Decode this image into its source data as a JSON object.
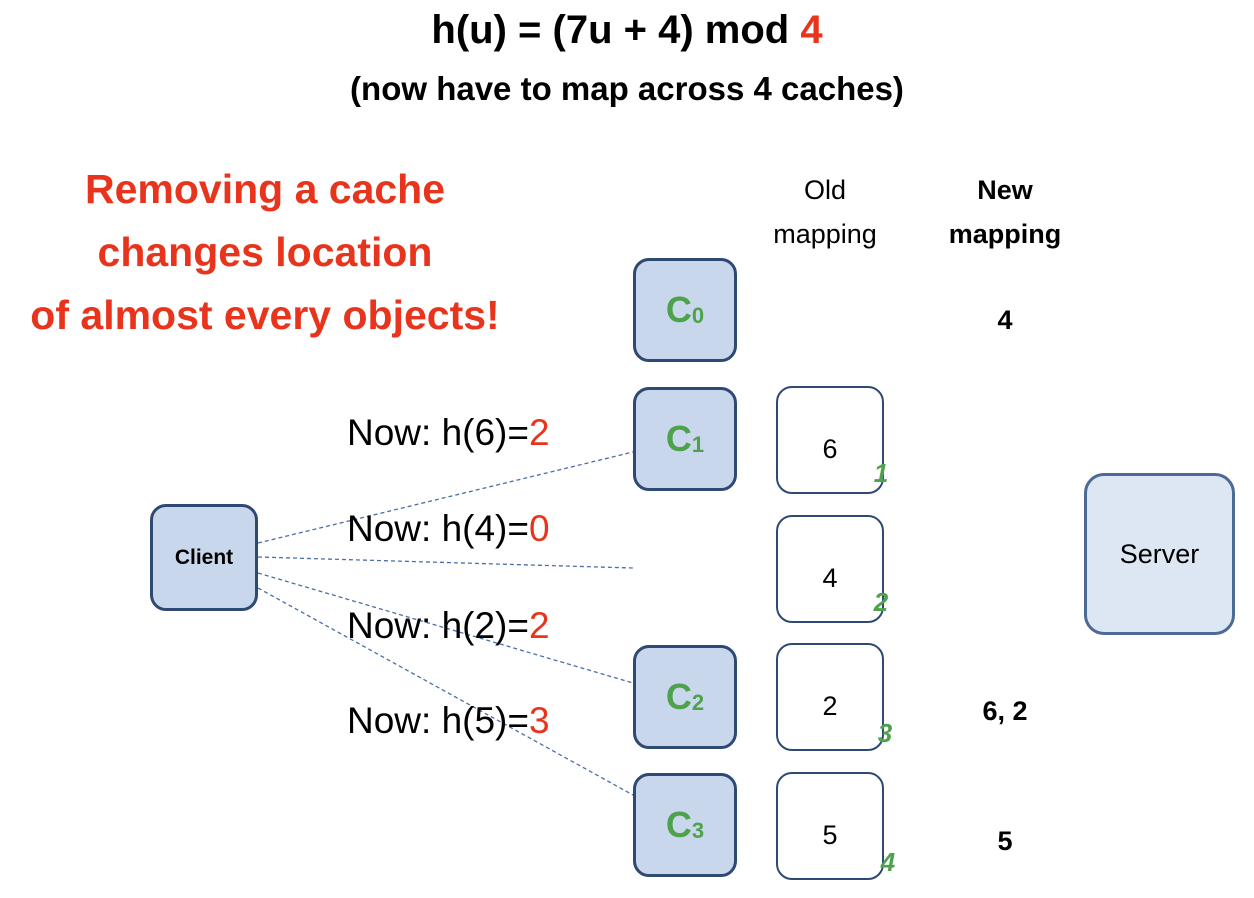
{
  "title": {
    "prefix": "h(u) = (7u + 4) mod ",
    "modulus": "4"
  },
  "subtitle": "(now have to map across 4 caches)",
  "note": [
    "Removing a cache",
    "changes location",
    "of almost every objects!"
  ],
  "columns": {
    "old": [
      "Old",
      "mapping"
    ],
    "new": [
      "New",
      "mapping"
    ]
  },
  "client_label": "Client",
  "server_label": "Server",
  "caches": [
    {
      "letter": "C",
      "sub": "0"
    },
    {
      "letter": "C",
      "sub": "1"
    },
    {
      "letter": "C",
      "sub": "2"
    },
    {
      "letter": "C",
      "sub": "3"
    }
  ],
  "old_mapping": [
    {
      "object": "6",
      "index": "1"
    },
    {
      "object": "4",
      "index": "2"
    },
    {
      "object": "2",
      "index": "3"
    },
    {
      "object": "5",
      "index": "4"
    }
  ],
  "new_mapping": {
    "c0": "4",
    "c2": "6, 2",
    "c3": "5"
  },
  "hash_labels": [
    {
      "prefix": "Now: h(6)=",
      "value": "2"
    },
    {
      "prefix": "Now: h(4)=",
      "value": "0"
    },
    {
      "prefix": "Now: h(2)=",
      "value": "2"
    },
    {
      "prefix": "Now: h(5)=",
      "value": "3"
    }
  ],
  "colors": {
    "red": "#e8341c",
    "green": "#4ea24b",
    "box_fill": "#c9d7ec",
    "box_border": "#2e4a73",
    "line": "#4a6fa5"
  }
}
